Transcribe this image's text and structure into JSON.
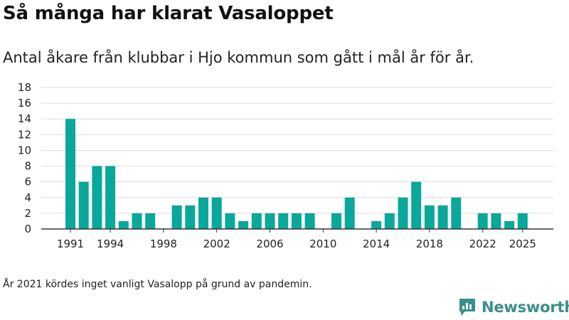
{
  "header": {
    "title": "Så många har klarat Vasaloppet",
    "subtitle": "Antal åkare från klubbar i Hjo kommun som gått i mål år för år."
  },
  "footnote": "År 2021 kördes inget vanligt Vasalopp på grund av pandemin.",
  "brand": {
    "name": "Newsworthy",
    "icon": "newsworthy-logo-icon"
  },
  "colors": {
    "bar": "#0aa79b",
    "grid": "#dddddd",
    "axis": "#333333",
    "brand": "#3a8f8a"
  },
  "chart_data": {
    "type": "bar",
    "title": "Så många har klarat Vasaloppet",
    "subtitle": "Antal åkare från klubbar i Hjo kommun som gått i mål år för år.",
    "x": [
      1991,
      1992,
      1993,
      1994,
      1995,
      1996,
      1997,
      1998,
      1999,
      2000,
      2001,
      2002,
      2003,
      2004,
      2005,
      2006,
      2007,
      2008,
      2009,
      2010,
      2011,
      2012,
      2013,
      2014,
      2015,
      2016,
      2017,
      2018,
      2019,
      2020,
      2021,
      2022,
      2023,
      2024,
      2025
    ],
    "values": [
      14,
      6,
      8,
      8,
      1,
      2,
      2,
      0,
      3,
      3,
      4,
      4,
      2,
      1,
      2,
      2,
      2,
      2,
      2,
      0,
      2,
      4,
      0,
      1,
      2,
      4,
      6,
      3,
      3,
      4,
      0,
      2,
      2,
      1,
      2
    ],
    "x_ticks": [
      1991,
      1994,
      1998,
      2002,
      2006,
      2010,
      2014,
      2018,
      2022,
      2025
    ],
    "y_ticks": [
      0,
      2,
      4,
      6,
      8,
      10,
      12,
      14,
      16,
      18
    ],
    "ylim": [
      0,
      18
    ],
    "xlabel": "",
    "ylabel": "",
    "grid": true,
    "legend": "none"
  }
}
